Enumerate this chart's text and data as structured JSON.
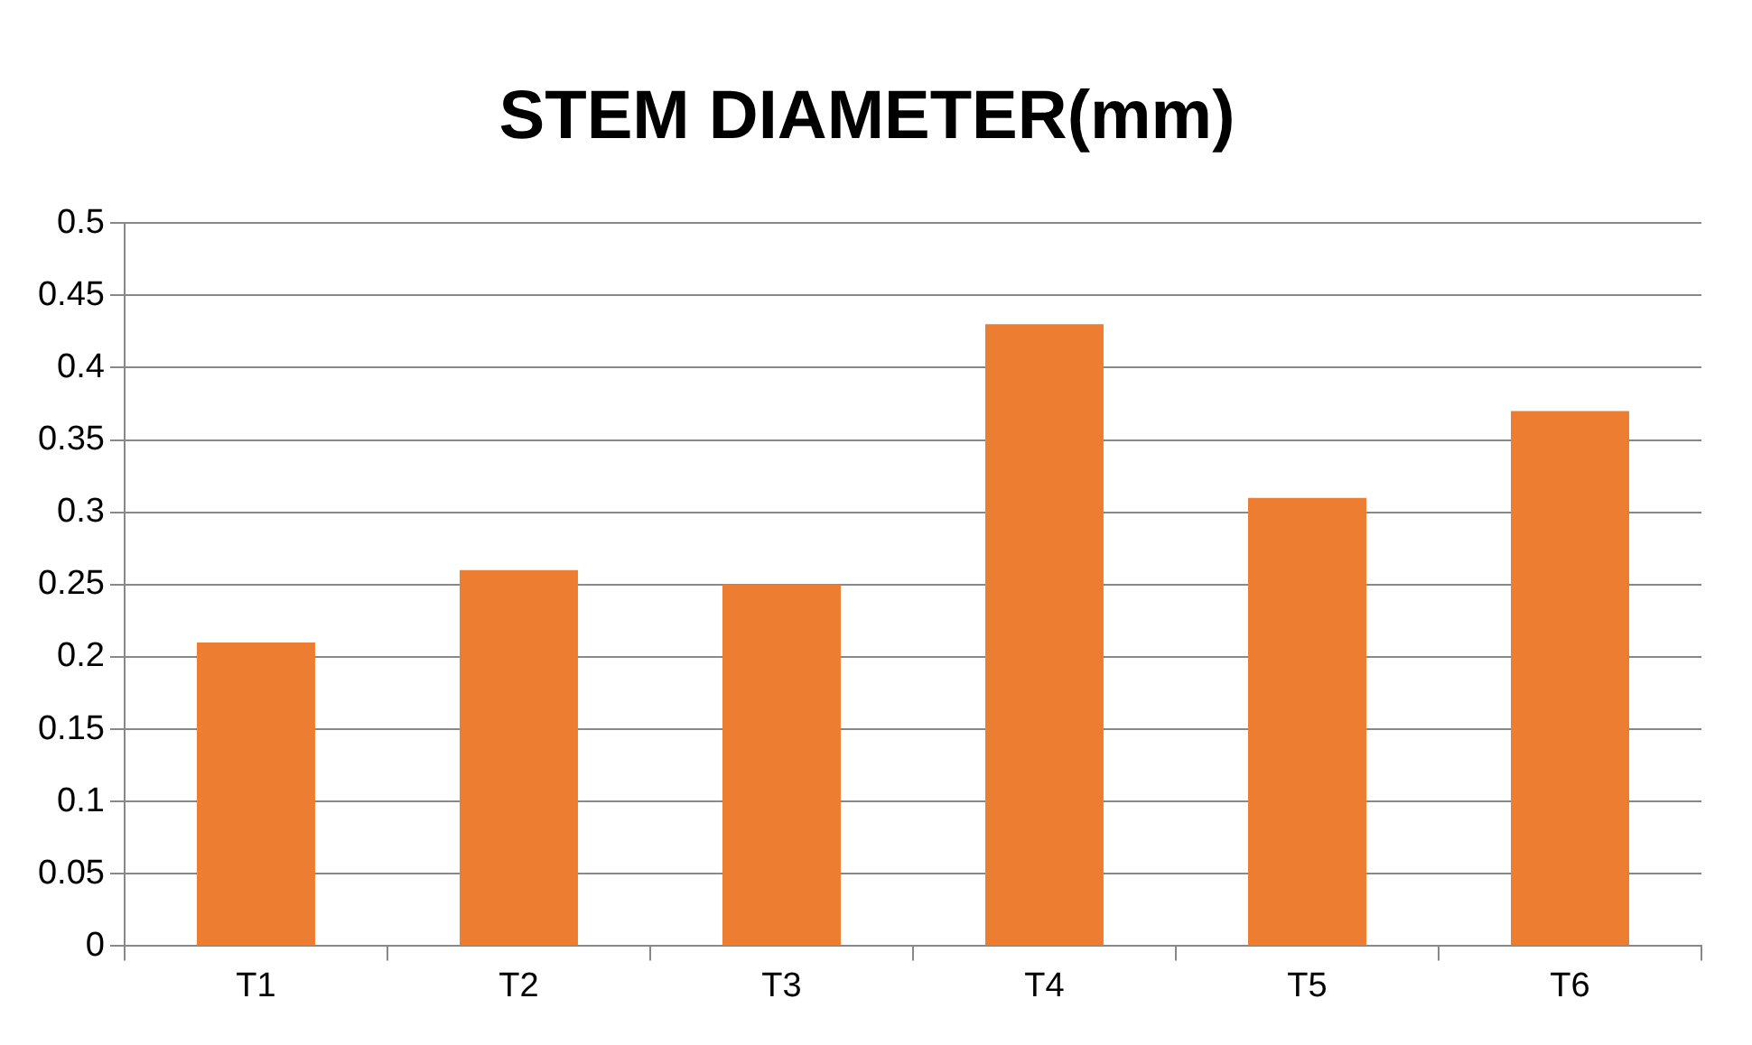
{
  "chart_data": {
    "type": "bar",
    "title": "STEM DIAMETER(mm)",
    "categories": [
      "T1",
      "T2",
      "T3",
      "T4",
      "T5",
      "T6"
    ],
    "values": [
      0.21,
      0.26,
      0.25,
      0.43,
      0.31,
      0.37
    ],
    "color": "#ed7d31",
    "ylim": [
      0,
      0.5
    ],
    "yticks": [
      0,
      0.05,
      0.1,
      0.15,
      0.2,
      0.25,
      0.3,
      0.35,
      0.4,
      0.45,
      0.5
    ],
    "grid": "y",
    "legend": false
  }
}
